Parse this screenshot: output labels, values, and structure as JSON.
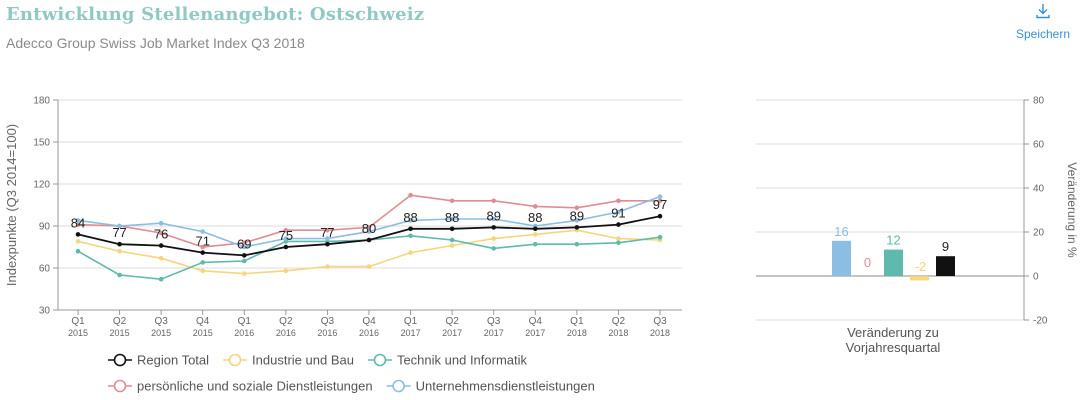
{
  "header": {
    "title": "Entwicklung Stellenangebot: Ostschweiz",
    "subtitle": "Adecco Group Swiss Job Market Index Q3 2018",
    "save_label": "Speichern",
    "save_icon": "download-icon"
  },
  "colors": {
    "title": "#8fc9c3",
    "region": "#111111",
    "industrie": "#f5d57e",
    "technik": "#5fb9ad",
    "persoenlich": "#e18c92",
    "unternehmen": "#8cbde3",
    "link": "#3a8fd0"
  },
  "chart_data": [
    {
      "type": "line",
      "ylabel": "Indexpunkte (Q3 2014=100)",
      "ylim": [
        30,
        180
      ],
      "yticks": [
        30,
        60,
        90,
        120,
        150,
        180
      ],
      "categories": [
        [
          "Q1",
          "2015"
        ],
        [
          "Q2",
          "2015"
        ],
        [
          "Q3",
          "2015"
        ],
        [
          "Q4",
          "2015"
        ],
        [
          "Q1",
          "2016"
        ],
        [
          "Q2",
          "2016"
        ],
        [
          "Q3",
          "2016"
        ],
        [
          "Q4",
          "2016"
        ],
        [
          "Q1",
          "2017"
        ],
        [
          "Q2",
          "2017"
        ],
        [
          "Q3",
          "2017"
        ],
        [
          "Q4",
          "2017"
        ],
        [
          "Q1",
          "2018"
        ],
        [
          "Q2",
          "2018"
        ],
        [
          "Q3",
          "2018"
        ]
      ],
      "series": [
        {
          "key": "industrie",
          "name": "Industrie und Bau",
          "color": "#f5d57e",
          "values": [
            79,
            72,
            67,
            58,
            56,
            58,
            61,
            61,
            71,
            76,
            81,
            84,
            87,
            81,
            80
          ]
        },
        {
          "key": "technik",
          "name": "Technik und Informatik",
          "color": "#5fb9ad",
          "values": [
            72,
            55,
            52,
            64,
            65,
            79,
            79,
            80,
            83,
            80,
            74,
            77,
            77,
            78,
            82
          ]
        },
        {
          "key": "persoenlich",
          "name": "persönliche und soziale Dienstleistungen",
          "color": "#e18c92",
          "values": [
            91,
            90,
            85,
            75,
            78,
            87,
            87,
            89,
            112,
            108,
            108,
            104,
            103,
            108,
            108
          ]
        },
        {
          "key": "unternehmen",
          "name": "Unternehmensdienstleistungen",
          "color": "#8cbde3",
          "values": [
            94,
            90,
            92,
            86,
            75,
            81,
            81,
            86,
            94,
            95,
            95,
            90,
            94,
            100,
            111
          ]
        },
        {
          "key": "region",
          "name": "Region Total",
          "color": "#111111",
          "labels": true,
          "values": [
            84,
            77,
            76,
            71,
            69,
            75,
            77,
            80,
            88,
            88,
            89,
            88,
            89,
            91,
            97
          ]
        }
      ],
      "legend": [
        {
          "key": "region",
          "name": "Region Total",
          "color": "#111111"
        },
        {
          "key": "industrie",
          "name": "Industrie und Bau",
          "color": "#f5d57e"
        },
        {
          "key": "technik",
          "name": "Technik und Informatik",
          "color": "#5fb9ad"
        },
        {
          "key": "persoenlich",
          "name": "persönliche und soziale Dienstleistungen",
          "color": "#e18c92"
        },
        {
          "key": "unternehmen",
          "name": "Unternehmensdienstleistungen",
          "color": "#8cbde3"
        }
      ]
    },
    {
      "type": "bar",
      "ylabel": "Veränderung in %",
      "xlabel": [
        "Veränderung zu",
        "Vorjahresquartal"
      ],
      "ylim": [
        -20,
        80
      ],
      "yticks": [
        -20,
        0,
        20,
        40,
        60,
        80
      ],
      "bars": [
        {
          "key": "unternehmen",
          "value": 16,
          "label": "16",
          "color": "#8cbde3"
        },
        {
          "key": "persoenlich",
          "value": 0,
          "label": "0",
          "color": "#e18c92"
        },
        {
          "key": "technik",
          "value": 12,
          "label": "12",
          "color": "#5fb9ad"
        },
        {
          "key": "industrie",
          "value": -2,
          "label": "-2",
          "color": "#f5d57e"
        },
        {
          "key": "region",
          "value": 9,
          "label": "9",
          "color": "#111111"
        }
      ]
    }
  ]
}
